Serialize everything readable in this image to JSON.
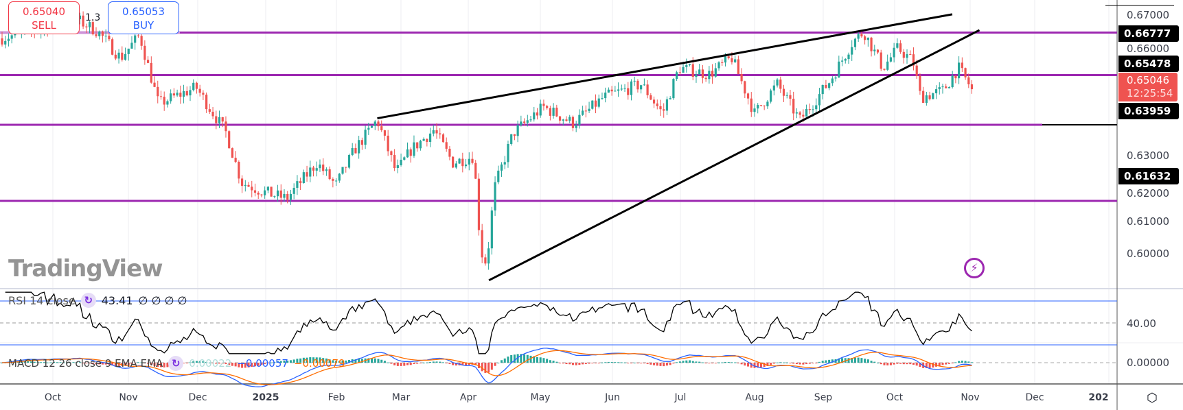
{
  "symbol_hint": "1.3",
  "trade": {
    "sell_price": "0.65040",
    "sell_label": "SELL",
    "buy_price": "0.65053",
    "buy_label": "BUY"
  },
  "price_axis": {
    "ticks": [
      "0.67000",
      "0.66000",
      "0.63000",
      "0.62000",
      "0.61000",
      "0.60000"
    ],
    "levels": [
      {
        "label": "0.66777",
        "price": 0.66777,
        "color": "#9c27b0"
      },
      {
        "label": "0.65478",
        "price": 0.65478,
        "color": "#9c27b0"
      },
      {
        "label": "0.63959",
        "price": 0.63959,
        "color": "#9c27b0"
      },
      {
        "label": "0.61632",
        "price": 0.61632,
        "color": "#9c27b0"
      }
    ],
    "current_price": "0.65046",
    "countdown": "12:25:54",
    "current_color": "#ef5350"
  },
  "trendlines": [
    {
      "from": [
        "Feb 2025",
        0.6407
      ],
      "to": [
        "Oct 2025",
        0.6724
      ]
    },
    {
      "from": [
        "Apr 2025",
        0.5959
      ],
      "to": [
        "Nov 2025",
        0.6686
      ]
    }
  ],
  "price_path": [
    [
      0,
      0.666
    ],
    [
      40,
      0.668
    ],
    [
      100,
      0.672
    ],
    [
      130,
      0.668
    ],
    [
      160,
      0.66
    ],
    [
      185,
      0.667
    ],
    [
      210,
      0.646
    ],
    [
      260,
      0.651
    ],
    [
      300,
      0.637
    ],
    [
      320,
      0.622
    ],
    [
      350,
      0.619
    ],
    [
      380,
      0.617
    ],
    [
      420,
      0.628
    ],
    [
      445,
      0.621
    ],
    [
      470,
      0.632
    ],
    [
      500,
      0.641
    ],
    [
      525,
      0.625
    ],
    [
      545,
      0.632
    ],
    [
      575,
      0.638
    ],
    [
      600,
      0.628
    ],
    [
      628,
      0.63
    ],
    [
      637,
      0.601
    ],
    [
      645,
      0.597
    ],
    [
      655,
      0.62
    ],
    [
      680,
      0.637
    ],
    [
      720,
      0.645
    ],
    [
      760,
      0.64
    ],
    [
      800,
      0.648
    ],
    [
      850,
      0.652
    ],
    [
      878,
      0.643
    ],
    [
      900,
      0.657
    ],
    [
      940,
      0.655
    ],
    [
      970,
      0.66
    ],
    [
      1000,
      0.643
    ],
    [
      1030,
      0.652
    ],
    [
      1060,
      0.641
    ],
    [
      1100,
      0.653
    ],
    [
      1130,
      0.665
    ],
    [
      1145,
      0.668
    ],
    [
      1170,
      0.657
    ],
    [
      1190,
      0.663
    ],
    [
      1210,
      0.659
    ],
    [
      1220,
      0.648
    ],
    [
      1250,
      0.65
    ],
    [
      1270,
      0.657
    ],
    [
      1288,
      0.6505
    ]
  ],
  "rsi": {
    "title": "RSI 14 close",
    "value": "43.41",
    "extras": "∅ ∅ ∅ ∅",
    "level_label": "40.00"
  },
  "macd": {
    "title": "MACD 12 26 close 9 EMA EMA",
    "hist": "0.00022",
    "macd": "−0.00057",
    "signal": "−0.00079",
    "macd_color": "#2962ff",
    "signal_color": "#ff6d00",
    "hist_color": "#b2dfdb"
  },
  "macd_axis_label": "0.00000",
  "time_axis": [
    "Oct",
    "Nov",
    "Dec",
    "2025",
    "Feb",
    "Mar",
    "Apr",
    "May",
    "Jun",
    "Jul",
    "Aug",
    "Sep",
    "Oct",
    "Nov",
    "Dec",
    "202"
  ],
  "watermark": "TradingView",
  "colors": {
    "up": "#26a69a",
    "down": "#ef5350"
  }
}
